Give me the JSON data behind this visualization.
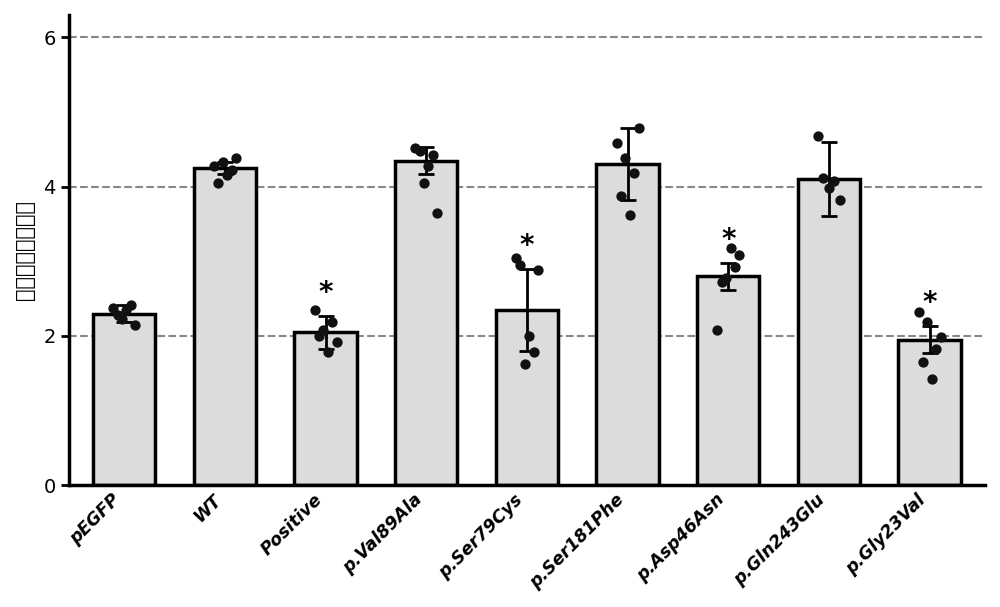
{
  "categories": [
    "pEGFP",
    "WT",
    "Positive",
    "p.Val89Ala",
    "p.Ser79Cys",
    "p.Ser181Phe",
    "p.Asp46Asn",
    "p.Gln243Glu",
    "p.Gly23Val"
  ],
  "bar_means": [
    2.3,
    4.25,
    2.05,
    4.35,
    2.35,
    4.3,
    2.8,
    4.1,
    1.95
  ],
  "bar_errors": [
    0.12,
    0.08,
    0.22,
    0.18,
    0.55,
    0.48,
    0.18,
    0.5,
    0.18
  ],
  "star_labels": [
    false,
    false,
    true,
    false,
    true,
    false,
    true,
    false,
    true
  ],
  "data_points": [
    [
      2.15,
      2.22,
      2.28,
      2.35,
      2.38,
      2.42
    ],
    [
      4.05,
      4.15,
      4.22,
      4.28,
      4.33,
      4.38
    ],
    [
      1.78,
      1.92,
      2.0,
      2.08,
      2.18,
      2.35
    ],
    [
      3.65,
      4.05,
      4.28,
      4.42,
      4.48,
      4.52
    ],
    [
      1.62,
      1.78,
      2.0,
      2.88,
      2.95,
      3.05
    ],
    [
      3.62,
      3.88,
      4.18,
      4.38,
      4.58,
      4.78
    ],
    [
      2.08,
      2.72,
      2.78,
      2.92,
      3.08,
      3.18
    ],
    [
      3.82,
      3.98,
      4.08,
      4.12,
      4.68
    ],
    [
      1.42,
      1.65,
      1.82,
      1.98,
      2.18,
      2.32
    ]
  ],
  "bar_color": "#dcdcdc",
  "bar_edgecolor": "#000000",
  "dot_color": "#111111",
  "error_color": "#000000",
  "ylabel": "相对荧光素酶活性",
  "ylim": [
    0,
    6.3
  ],
  "yticks": [
    0,
    2,
    4,
    6
  ],
  "hlines": [
    2.0,
    4.0,
    6.0
  ],
  "bar_linewidth": 2.5,
  "figure_bgcolor": "#ffffff",
  "bar_width": 0.62
}
